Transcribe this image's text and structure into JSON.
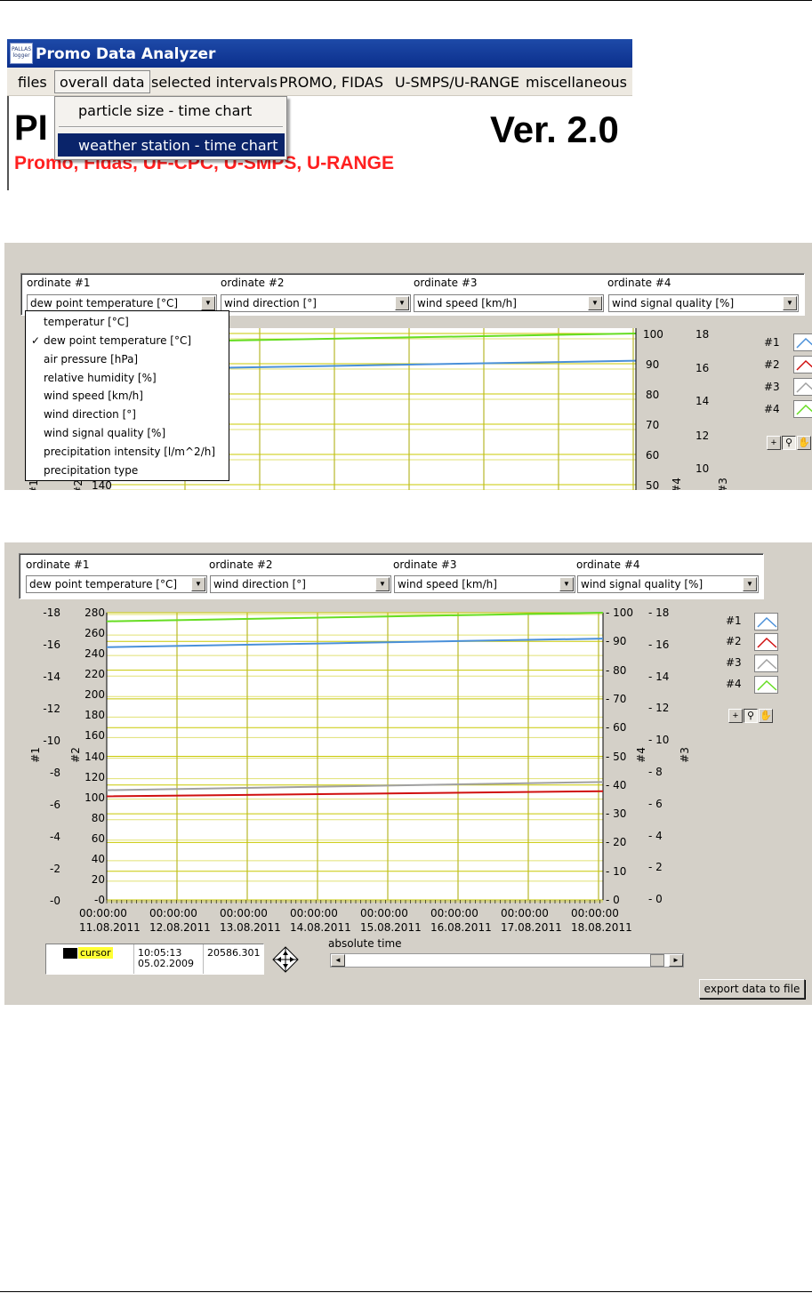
{
  "app": {
    "title": "Promo Data Analyzer",
    "icon_text": "PALLAS logger",
    "menu": [
      "files",
      "overall data",
      "selected intervals",
      "PROMO, FIDAS",
      "U-SMPS/U-RANGE",
      "miscellaneous"
    ],
    "open_menu": [
      "particle size - time chart",
      "weather station - time chart"
    ],
    "header_partial": "PI",
    "version": "Ver. 2.0",
    "subtitle": "Promo, Fidas, UF-CPC, U-SMPS, U-RANGE"
  },
  "ordinates": {
    "labels": [
      "ordinate #1",
      "ordinate #2",
      "ordinate #3",
      "ordinate #4"
    ],
    "selected": [
      "dew point temperature [°C]",
      "wind direction [°]",
      "wind speed [km/h]",
      "wind signal quality [%]"
    ]
  },
  "dropdown_options": [
    "temperatur [°C]",
    "dew point temperature [°C]",
    "air pressure [hPa]",
    "relative humidity [%]",
    "wind speed [km/h]",
    "wind direction [°]",
    "wind signal quality [%]",
    "precipitation intensity [l/m^2/h]",
    "precipitation type"
  ],
  "dropdown_checked": "✓",
  "legend": {
    "labels": [
      "#1",
      "#2",
      "#3",
      "#4"
    ],
    "colors": [
      "#4a90d9",
      "#d01010",
      "#a0a0a0",
      "#66dd22"
    ],
    "icons": [
      "zoom-cursor-icon",
      "zoom-magnifier-icon",
      "pan-hand-icon"
    ]
  },
  "axes": {
    "axis1_ticks": [
      "-18",
      "-16",
      "-14",
      "-12",
      "-10",
      "-8",
      "-6",
      "-4",
      "-2",
      "-0"
    ],
    "axis2_ticks": [
      "280",
      "260",
      "240",
      "220",
      "200",
      "180",
      "160",
      "140",
      "120",
      "100",
      "80",
      "60",
      "40",
      "20",
      "-0"
    ],
    "axis4_ticks": [
      "100",
      "90",
      "80",
      "70",
      "60",
      "50",
      "40",
      "30",
      "20",
      "10",
      "0"
    ],
    "axis3_ticks": [
      "18",
      "16",
      "14",
      "12",
      "10",
      "8",
      "6",
      "4",
      "2",
      "0"
    ],
    "axis_names": [
      "#1",
      "#2",
      "#4",
      "#3"
    ],
    "shot2_axis2_visible_tick": "140",
    "x_times": [
      "00:00:00",
      "00:00:00",
      "00:00:00",
      "00:00:00",
      "00:00:00",
      "00:00:00",
      "00:00:00",
      "00:00:00"
    ],
    "x_dates": [
      "11.08.2011",
      "12.08.2011",
      "13.08.2011",
      "14.08.2011",
      "15.08.2011",
      "16.08.2011",
      "17.08.2011",
      "18.08.2011"
    ]
  },
  "series_levels": {
    "s4_green_axis4": [
      97,
      100
    ],
    "s1_blue_axis4": [
      88,
      91
    ],
    "s3_gray_axis2": [
      107,
      115
    ],
    "s2_red_axis2": [
      101,
      106
    ]
  },
  "cursor": {
    "label": "cursor",
    "time": "10:05:13",
    "date": "05.02.2009",
    "value": "20586.301"
  },
  "controls": {
    "absolute_time_label": "absolute time",
    "export_button": "export data to file"
  }
}
